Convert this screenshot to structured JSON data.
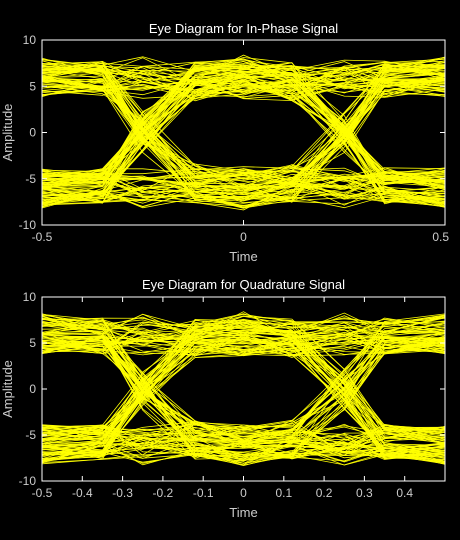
{
  "chart_data": [
    {
      "type": "line",
      "title": "Eye Diagram for In-Phase Signal",
      "xlabel": "Time",
      "ylabel": "Amplitude",
      "xlim": [
        -0.5,
        0.5
      ],
      "ylim": [
        -10,
        10
      ],
      "xticks": [
        -0.5,
        0,
        0.5
      ],
      "xtick_labels": [
        "-0.5",
        "0",
        "0.5"
      ],
      "yticks": [
        -10,
        -5,
        0,
        5,
        10
      ],
      "ytick_labels": [
        "-10",
        "-5",
        "0",
        "5",
        "10"
      ],
      "grid": false,
      "symbol_levels": [
        -7,
        -5,
        5,
        7
      ],
      "crossing_times": [
        -0.25,
        0.25
      ],
      "trace_count": 160,
      "seed": 11,
      "color": "#ffff00"
    },
    {
      "type": "line",
      "title": "Eye Diagram for Quadrature Signal",
      "xlabel": "Time",
      "ylabel": "Amplitude",
      "xlim": [
        -0.5,
        0.5
      ],
      "ylim": [
        -10,
        10
      ],
      "xticks": [
        -0.5,
        -0.4,
        -0.3,
        -0.2,
        -0.1,
        0,
        0.1,
        0.2,
        0.3,
        0.4
      ],
      "xtick_labels": [
        "-0.5",
        "-0.4",
        "-0.3",
        "-0.2",
        "-0.1",
        "0",
        "0.1",
        "0.2",
        "0.3",
        "0.4"
      ],
      "yticks": [
        -10,
        -5,
        0,
        5,
        10
      ],
      "ytick_labels": [
        "-10",
        "-5",
        "0",
        "5",
        "10"
      ],
      "grid": false,
      "symbol_levels": [
        -7,
        -5,
        5,
        7
      ],
      "crossing_times": [
        -0.25,
        0.25
      ],
      "trace_count": 160,
      "seed": 29,
      "color": "#ffff00"
    }
  ],
  "colors": {
    "background": "#000000",
    "trace": "#ffff00",
    "axis": "#ffffff",
    "text": "#cccccc"
  }
}
